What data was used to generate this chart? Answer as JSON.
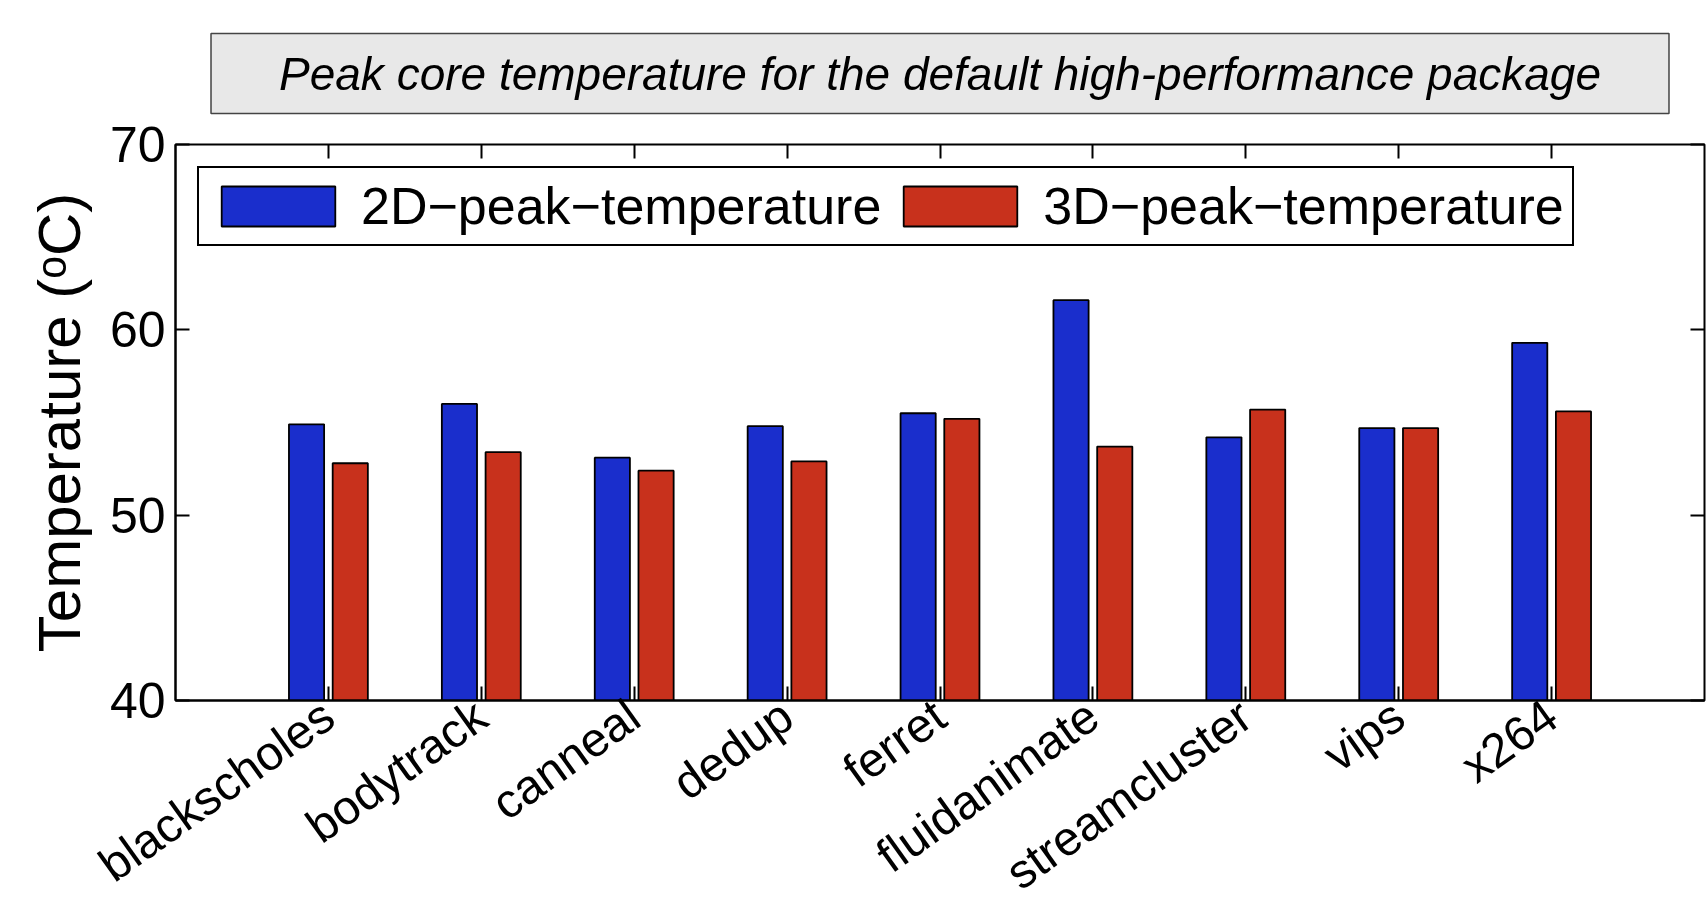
{
  "chart_data": {
    "type": "bar",
    "title": "Peak core temperature for the default high-performance package",
    "ylabel": "Temperature (ᵒC)",
    "categories": [
      "blackscholes",
      "bodytrack",
      "canneal",
      "dedup",
      "ferret",
      "fluidanimate",
      "streamcluster",
      "vips",
      "x264"
    ],
    "series": [
      {
        "name": "2D−peak−temperature",
        "color": "#1a2ecc",
        "values": [
          54.9,
          56.0,
          53.1,
          54.8,
          55.5,
          61.6,
          54.2,
          54.7,
          59.3
        ]
      },
      {
        "name": "3D−peak−temperature",
        "color": "#c8311c",
        "values": [
          52.8,
          53.4,
          52.4,
          52.9,
          55.2,
          53.7,
          55.7,
          54.7,
          55.6
        ]
      }
    ],
    "ylim": [
      40,
      70
    ],
    "yticks": [
      40,
      50,
      60,
      70
    ],
    "grid": false,
    "legend": "top left"
  }
}
